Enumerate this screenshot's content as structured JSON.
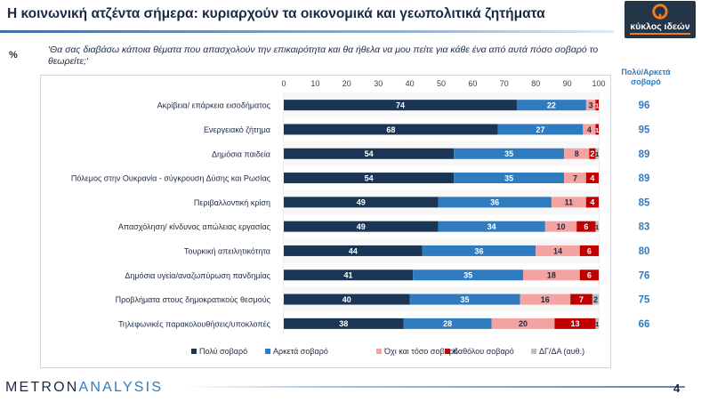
{
  "header": {
    "title": "Η κοινωνική ατζέντα σήμερα: κυριαρχούν τα οικονομικά και γεωπολιτικά ζητήματα",
    "logo_text": "κύκλος ιδεών"
  },
  "question": {
    "percent_symbol": "%",
    "text": "'Θα σας διαβάσω κάποια θέματα που απασχολούν την επικαιρότητα και θα ήθελα να μου πείτε για κάθε ένα από αυτά πόσο σοβαρό το θεωρείτε;'"
  },
  "side_header": {
    "line1": "Πολύ/Αρκετά",
    "line2": "σοβαρό"
  },
  "footer": {
    "brand_left": "METRON",
    "brand_right": "ANALYSIS",
    "page_number": "4"
  },
  "colors": {
    "very": "#1b3556",
    "quite": "#2f7bbf",
    "not_so": "#f4a3a3",
    "not_at_all": "#c00000",
    "dk": "#bfbfbf",
    "side_value": "#2f7bbf"
  },
  "chart_data": {
    "type": "bar",
    "orientation": "horizontal",
    "stacked": true,
    "xlim": [
      0,
      100
    ],
    "x_ticks": [
      0,
      10,
      20,
      30,
      40,
      50,
      60,
      70,
      80,
      90,
      100
    ],
    "grid": true,
    "legend_position": "bottom",
    "categories": [
      "Ακρίβεια/ επάρκεια εισοδήματος",
      "Ενεργειακό ζήτημα",
      "Δημόσια παιδεία",
      "Πόλεμος στην Ουκρανία - σύγκρουση Δύσης και Ρωσίας",
      "Περιβαλλοντική κρίση",
      "Απασχόληση/ κίνδυνος απώλειας εργασίας",
      "Τουρκική απειλητικότητα",
      "Δημόσια υγεία/αναζωπύρωση πανδημίας",
      "Προβλήματα στους δημοκρατικούς θεσμούς",
      "Τηλεφωνικές παρακολουθήσεις/υποκλοπές"
    ],
    "series": [
      {
        "name": "Πολύ σοβαρό",
        "values": [
          74,
          68,
          54,
          54,
          49,
          49,
          44,
          41,
          40,
          38
        ]
      },
      {
        "name": "Αρκετά σοβαρό",
        "values": [
          22,
          27,
          35,
          35,
          36,
          34,
          36,
          35,
          35,
          28
        ]
      },
      {
        "name": "Όχι και τόσο σοβαρό",
        "values": [
          3,
          4,
          8,
          7,
          11,
          10,
          14,
          18,
          16,
          20
        ]
      },
      {
        "name": "Καθόλου σοβαρό",
        "values": [
          1,
          1,
          2,
          4,
          4,
          6,
          6,
          6,
          7,
          13
        ]
      },
      {
        "name": "ΔΓ/ΔΑ (αυθ.)",
        "values": [
          0,
          0,
          1,
          0,
          0,
          1,
          0,
          0,
          2,
          1
        ]
      }
    ],
    "summary_label": "Πολύ/Αρκετά σοβαρό",
    "summary_values": [
      96,
      95,
      89,
      89,
      85,
      83,
      80,
      76,
      75,
      66
    ]
  }
}
